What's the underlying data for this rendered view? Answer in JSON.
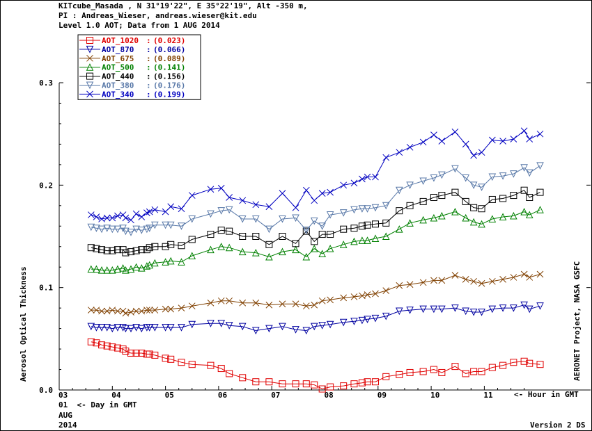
{
  "header": {
    "line1": "KITcube_Masada , N 31°19'22\", E 35°22'19\", Alt -350 m,",
    "line2": "PI : Andreas_Wieser, andreas.wieser@kit.edu",
    "line3": "Level 1.0 AOT; Data from 1 AUG 2014"
  },
  "footer": {
    "day_label": "01  <- Day in GMT",
    "month": "AUG",
    "year": "2014",
    "hour_label": "<- Hour in GMT",
    "version": "Version 2 DS"
  },
  "right_label": "AERONET Project, NASA GSFC",
  "colors": {
    "AOT_1020": "#e00000",
    "AOT_870": "#0000a0",
    "AOT_675": "#804000",
    "AOT_500": "#008000",
    "AOT_440": "#000000",
    "AOT_380": "#5878a8",
    "AOT_340": "#0000c0"
  },
  "chart_data": {
    "type": "line",
    "ylabel": "Aerosol Optical Thickness",
    "xlabel": "<- Hour in GMT",
    "ylim": [
      0.0,
      0.3
    ],
    "xlim": [
      3.0,
      13.0
    ],
    "x_ticks": [
      "03",
      "04",
      "05",
      "06",
      "07",
      "08",
      "09",
      "10",
      "11"
    ],
    "x_tick_values": [
      3,
      4,
      5,
      6,
      7,
      8,
      9,
      10,
      11
    ],
    "y_ticks": [
      "0.0",
      "0.1",
      "0.2",
      "0.3"
    ],
    "y_tick_values": [
      0.0,
      0.1,
      0.2,
      0.3
    ],
    "x": [
      3.6,
      3.7,
      3.8,
      3.9,
      4.0,
      4.1,
      4.2,
      4.25,
      4.35,
      4.45,
      4.55,
      4.65,
      4.7,
      4.8,
      5.0,
      5.1,
      5.3,
      5.5,
      5.85,
      6.05,
      6.2,
      6.45,
      6.7,
      6.95,
      7.2,
      7.45,
      7.65,
      7.8,
      7.95,
      8.1,
      8.35,
      8.55,
      8.7,
      8.8,
      8.95,
      9.15,
      9.4,
      9.6,
      9.85,
      10.05,
      10.2,
      10.45,
      10.65,
      10.8,
      10.95,
      11.15,
      11.35,
      11.55,
      11.75,
      11.85,
      12.05
    ],
    "series": [
      {
        "name": "AOT_1020",
        "legend_value": "(0.023)",
        "marker": "square",
        "values": [
          0.047,
          0.046,
          0.044,
          0.043,
          0.042,
          0.041,
          0.04,
          0.038,
          0.036,
          0.036,
          0.036,
          0.035,
          0.035,
          0.034,
          0.031,
          0.03,
          0.027,
          0.025,
          0.024,
          0.021,
          0.016,
          0.012,
          0.008,
          0.008,
          0.006,
          0.006,
          0.006,
          0.005,
          0.001,
          0.003,
          0.004,
          0.006,
          0.007,
          0.008,
          0.008,
          0.013,
          0.015,
          0.017,
          0.018,
          0.02,
          0.017,
          0.023,
          0.016,
          0.018,
          0.018,
          0.022,
          0.024,
          0.027,
          0.028,
          0.026,
          0.025
        ]
      },
      {
        "name": "AOT_870",
        "legend_value": "(0.066)",
        "marker": "triangle-down",
        "values": [
          0.062,
          0.061,
          0.061,
          0.061,
          0.06,
          0.061,
          0.061,
          0.06,
          0.06,
          0.061,
          0.06,
          0.061,
          0.061,
          0.061,
          0.061,
          0.061,
          0.061,
          0.064,
          0.065,
          0.065,
          0.063,
          0.062,
          0.058,
          0.06,
          0.062,
          0.059,
          0.058,
          0.062,
          0.063,
          0.064,
          0.066,
          0.067,
          0.068,
          0.069,
          0.07,
          0.072,
          0.077,
          0.078,
          0.079,
          0.079,
          0.079,
          0.08,
          0.077,
          0.076,
          0.076,
          0.079,
          0.08,
          0.08,
          0.083,
          0.079,
          0.082
        ]
      },
      {
        "name": "AOT_675",
        "legend_value": "(0.089)",
        "marker": "x",
        "values": [
          0.078,
          0.078,
          0.077,
          0.077,
          0.078,
          0.077,
          0.077,
          0.075,
          0.076,
          0.077,
          0.077,
          0.078,
          0.078,
          0.078,
          0.079,
          0.079,
          0.08,
          0.082,
          0.085,
          0.087,
          0.087,
          0.085,
          0.085,
          0.083,
          0.084,
          0.084,
          0.082,
          0.083,
          0.087,
          0.088,
          0.09,
          0.091,
          0.092,
          0.093,
          0.094,
          0.097,
          0.102,
          0.103,
          0.105,
          0.107,
          0.107,
          0.112,
          0.108,
          0.106,
          0.104,
          0.106,
          0.108,
          0.11,
          0.113,
          0.11,
          0.113
        ]
      },
      {
        "name": "AOT_500",
        "legend_value": "(0.141)",
        "marker": "triangle-up",
        "values": [
          0.118,
          0.118,
          0.117,
          0.117,
          0.117,
          0.118,
          0.119,
          0.117,
          0.118,
          0.12,
          0.119,
          0.121,
          0.122,
          0.124,
          0.125,
          0.126,
          0.125,
          0.131,
          0.137,
          0.14,
          0.139,
          0.135,
          0.134,
          0.13,
          0.135,
          0.137,
          0.13,
          0.138,
          0.133,
          0.138,
          0.142,
          0.145,
          0.146,
          0.146,
          0.148,
          0.15,
          0.157,
          0.163,
          0.166,
          0.168,
          0.17,
          0.174,
          0.168,
          0.164,
          0.162,
          0.167,
          0.169,
          0.17,
          0.174,
          0.171,
          0.176
        ]
      },
      {
        "name": "AOT_440",
        "legend_value": "(0.156)",
        "marker": "square",
        "values": [
          0.139,
          0.138,
          0.137,
          0.136,
          0.136,
          0.137,
          0.137,
          0.134,
          0.135,
          0.136,
          0.137,
          0.137,
          0.139,
          0.14,
          0.14,
          0.142,
          0.141,
          0.147,
          0.152,
          0.156,
          0.155,
          0.15,
          0.15,
          0.142,
          0.15,
          0.143,
          0.155,
          0.145,
          0.152,
          0.152,
          0.157,
          0.158,
          0.16,
          0.161,
          0.162,
          0.163,
          0.175,
          0.18,
          0.184,
          0.188,
          0.19,
          0.193,
          0.184,
          0.178,
          0.177,
          0.186,
          0.187,
          0.19,
          0.195,
          0.188,
          0.193
        ]
      },
      {
        "name": "AOT_380",
        "legend_value": "(0.176)",
        "marker": "triangle-down",
        "values": [
          0.159,
          0.158,
          0.157,
          0.158,
          0.157,
          0.157,
          0.158,
          0.155,
          0.154,
          0.157,
          0.156,
          0.157,
          0.158,
          0.161,
          0.161,
          0.161,
          0.16,
          0.167,
          0.172,
          0.175,
          0.176,
          0.167,
          0.167,
          0.157,
          0.167,
          0.168,
          0.156,
          0.165,
          0.16,
          0.171,
          0.173,
          0.176,
          0.177,
          0.177,
          0.178,
          0.18,
          0.195,
          0.2,
          0.204,
          0.207,
          0.21,
          0.216,
          0.207,
          0.2,
          0.198,
          0.208,
          0.209,
          0.211,
          0.217,
          0.212,
          0.219
        ]
      },
      {
        "name": "AOT_340",
        "legend_value": "(0.199)",
        "marker": "x",
        "values": [
          0.171,
          0.169,
          0.167,
          0.168,
          0.168,
          0.17,
          0.171,
          0.168,
          0.166,
          0.172,
          0.169,
          0.173,
          0.174,
          0.176,
          0.174,
          0.179,
          0.177,
          0.19,
          0.196,
          0.197,
          0.188,
          0.185,
          0.181,
          0.179,
          0.192,
          0.178,
          0.195,
          0.185,
          0.192,
          0.193,
          0.2,
          0.202,
          0.206,
          0.208,
          0.208,
          0.227,
          0.232,
          0.237,
          0.242,
          0.249,
          0.243,
          0.252,
          0.24,
          0.229,
          0.232,
          0.244,
          0.243,
          0.245,
          0.253,
          0.245,
          0.25
        ]
      }
    ]
  }
}
